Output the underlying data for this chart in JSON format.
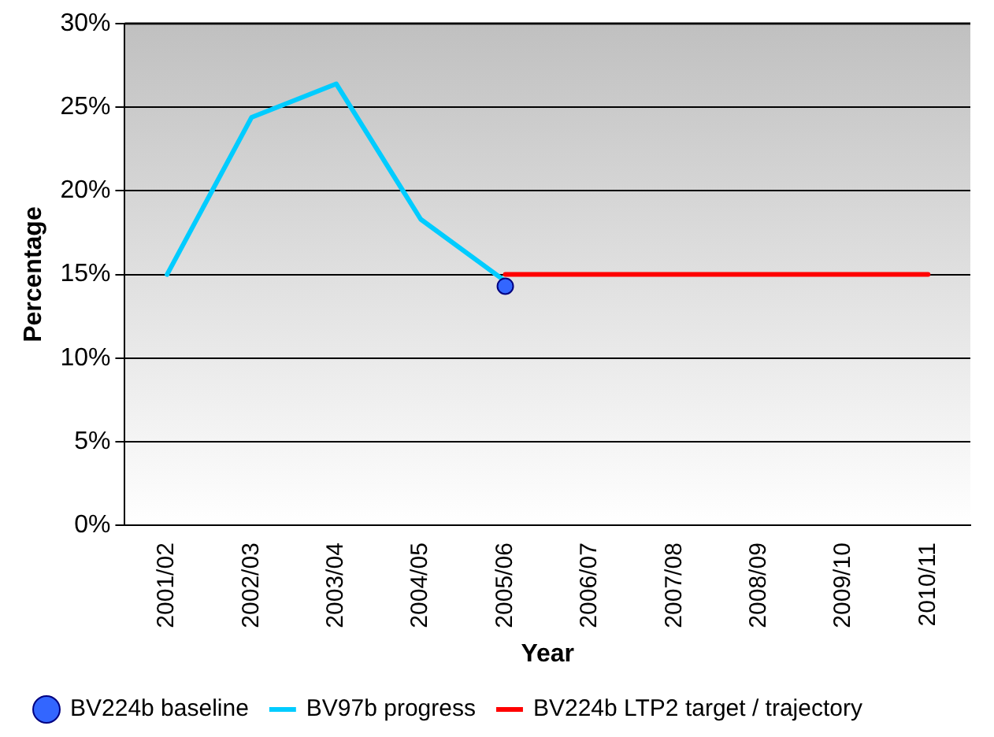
{
  "chart_data": {
    "type": "line",
    "xlabel": "Year",
    "ylabel": "Percentage",
    "categories": [
      "2001/02",
      "2002/03",
      "2003/04",
      "2004/05",
      "2005/06",
      "2006/07",
      "2007/08",
      "2008/09",
      "2009/10",
      "2010/11"
    ],
    "series": [
      {
        "name": "BV224b baseline",
        "type": "scatter",
        "color": "#3366ff",
        "marker": "circle",
        "values": [
          null,
          null,
          null,
          null,
          14.3,
          null,
          null,
          null,
          null,
          null
        ]
      },
      {
        "name": "BV97b progress",
        "color": "#00ccff",
        "marker": "none",
        "values": [
          15,
          24.4,
          26.4,
          18.3,
          14.6,
          null,
          null,
          null,
          null,
          null
        ]
      },
      {
        "name": "BV224b LTP2 target / trajectory",
        "color": "#ff0000",
        "marker": "none",
        "values": [
          null,
          null,
          null,
          null,
          15,
          15,
          15,
          15,
          15,
          15
        ]
      }
    ],
    "ylim": [
      0,
      30
    ],
    "yticks": [
      {
        "value": 0,
        "label": "0%"
      },
      {
        "value": 5,
        "label": "5%"
      },
      {
        "value": 10,
        "label": "10%"
      },
      {
        "value": 15,
        "label": "15%"
      },
      {
        "value": 20,
        "label": "20%"
      },
      {
        "value": 25,
        "label": "25%"
      },
      {
        "value": 30,
        "label": "30%"
      }
    ],
    "grid": "y",
    "legend": "bottom"
  }
}
